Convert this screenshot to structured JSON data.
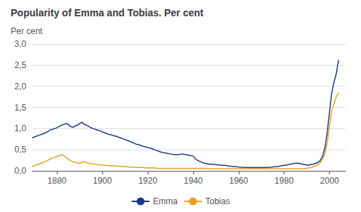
{
  "chart_data": {
    "type": "line",
    "title": "Popularity of Emma and Tobias. Per cent",
    "ylabel": "Per cent",
    "xlim": [
      1869,
      2007
    ],
    "ylim": [
      0.0,
      3.0
    ],
    "xticks": [
      1880,
      1900,
      1920,
      1940,
      1960,
      1980,
      2000
    ],
    "yticks": [
      {
        "value": 0.0,
        "label": "0,0"
      },
      {
        "value": 0.5,
        "label": "0,5"
      },
      {
        "value": 1.0,
        "label": "1,0"
      },
      {
        "value": 1.5,
        "label": "1,5"
      },
      {
        "value": 2.0,
        "label": "2,0"
      },
      {
        "value": 2.5,
        "label": "2,5"
      },
      {
        "value": 3.0,
        "label": "3,0"
      }
    ],
    "grid": true,
    "legend": "bottom",
    "x": [
      1869,
      1870,
      1871,
      1872,
      1873,
      1874,
      1875,
      1876,
      1877,
      1878,
      1879,
      1880,
      1881,
      1882,
      1883,
      1884,
      1885,
      1886,
      1887,
      1888,
      1889,
      1890,
      1891,
      1892,
      1893,
      1894,
      1895,
      1896,
      1897,
      1898,
      1899,
      1900,
      1901,
      1902,
      1903,
      1904,
      1905,
      1906,
      1907,
      1908,
      1909,
      1910,
      1911,
      1912,
      1913,
      1914,
      1915,
      1916,
      1917,
      1918,
      1919,
      1920,
      1921,
      1922,
      1923,
      1924,
      1925,
      1926,
      1927,
      1928,
      1929,
      1930,
      1931,
      1932,
      1933,
      1934,
      1935,
      1936,
      1937,
      1938,
      1939,
      1940,
      1941,
      1942,
      1943,
      1944,
      1945,
      1946,
      1947,
      1948,
      1949,
      1950,
      1951,
      1952,
      1953,
      1954,
      1955,
      1956,
      1957,
      1958,
      1959,
      1960,
      1961,
      1962,
      1963,
      1964,
      1965,
      1966,
      1967,
      1968,
      1969,
      1970,
      1971,
      1972,
      1973,
      1974,
      1975,
      1976,
      1977,
      1978,
      1979,
      1980,
      1981,
      1982,
      1983,
      1984,
      1985,
      1986,
      1987,
      1988,
      1989,
      1990,
      1991,
      1992,
      1993,
      1994,
      1995,
      1996,
      1997,
      1998,
      1999,
      2000,
      2001,
      2002,
      2003,
      2004
    ],
    "series": [
      {
        "name": "Emma",
        "color": "#1a3a8c",
        "values": [
          0.78,
          0.8,
          0.82,
          0.84,
          0.86,
          0.88,
          0.9,
          0.93,
          0.97,
          0.98,
          1.0,
          1.02,
          1.05,
          1.08,
          1.1,
          1.12,
          1.1,
          1.05,
          1.03,
          1.06,
          1.08,
          1.12,
          1.15,
          1.1,
          1.08,
          1.05,
          1.02,
          1.0,
          0.98,
          0.96,
          0.95,
          0.92,
          0.9,
          0.88,
          0.86,
          0.85,
          0.83,
          0.82,
          0.8,
          0.78,
          0.76,
          0.74,
          0.72,
          0.7,
          0.68,
          0.65,
          0.63,
          0.62,
          0.6,
          0.58,
          0.57,
          0.55,
          0.54,
          0.52,
          0.5,
          0.48,
          0.46,
          0.44,
          0.43,
          0.42,
          0.41,
          0.4,
          0.39,
          0.38,
          0.38,
          0.39,
          0.4,
          0.39,
          0.38,
          0.37,
          0.36,
          0.35,
          0.28,
          0.25,
          0.22,
          0.2,
          0.18,
          0.17,
          0.16,
          0.16,
          0.15,
          0.15,
          0.14,
          0.14,
          0.13,
          0.13,
          0.12,
          0.11,
          0.11,
          0.1,
          0.1,
          0.09,
          0.09,
          0.08,
          0.08,
          0.08,
          0.08,
          0.08,
          0.08,
          0.08,
          0.08,
          0.08,
          0.08,
          0.08,
          0.08,
          0.09,
          0.09,
          0.1,
          0.1,
          0.11,
          0.12,
          0.13,
          0.14,
          0.15,
          0.16,
          0.17,
          0.18,
          0.18,
          0.17,
          0.16,
          0.15,
          0.14,
          0.14,
          0.15,
          0.16,
          0.18,
          0.2,
          0.25,
          0.35,
          0.55,
          0.9,
          1.38,
          1.85,
          2.1,
          2.3,
          2.62
        ]
      },
      {
        "name": "Tobias",
        "color": "#e8a020",
        "values": [
          0.1,
          0.12,
          0.14,
          0.16,
          0.18,
          0.2,
          0.22,
          0.25,
          0.28,
          0.3,
          0.32,
          0.34,
          0.36,
          0.38,
          0.36,
          0.32,
          0.28,
          0.24,
          0.22,
          0.2,
          0.19,
          0.18,
          0.2,
          0.22,
          0.2,
          0.18,
          0.17,
          0.16,
          0.15,
          0.15,
          0.14,
          0.14,
          0.13,
          0.13,
          0.12,
          0.12,
          0.12,
          0.11,
          0.11,
          0.11,
          0.1,
          0.1,
          0.1,
          0.09,
          0.09,
          0.09,
          0.08,
          0.08,
          0.08,
          0.08,
          0.07,
          0.07,
          0.07,
          0.07,
          0.07,
          0.06,
          0.06,
          0.06,
          0.06,
          0.06,
          0.06,
          0.06,
          0.06,
          0.06,
          0.06,
          0.06,
          0.06,
          0.06,
          0.06,
          0.06,
          0.06,
          0.06,
          0.06,
          0.06,
          0.06,
          0.06,
          0.06,
          0.06,
          0.05,
          0.05,
          0.05,
          0.05,
          0.05,
          0.05,
          0.05,
          0.05,
          0.05,
          0.05,
          0.05,
          0.05,
          0.05,
          0.05,
          0.05,
          0.05,
          0.05,
          0.05,
          0.05,
          0.05,
          0.05,
          0.05,
          0.05,
          0.05,
          0.05,
          0.05,
          0.05,
          0.05,
          0.05,
          0.05,
          0.05,
          0.05,
          0.05,
          0.05,
          0.05,
          0.05,
          0.05,
          0.05,
          0.05,
          0.05,
          0.05,
          0.05,
          0.05,
          0.06,
          0.07,
          0.08,
          0.1,
          0.12,
          0.15,
          0.2,
          0.28,
          0.42,
          0.65,
          1.05,
          1.42,
          1.6,
          1.75,
          1.85
        ]
      }
    ]
  }
}
